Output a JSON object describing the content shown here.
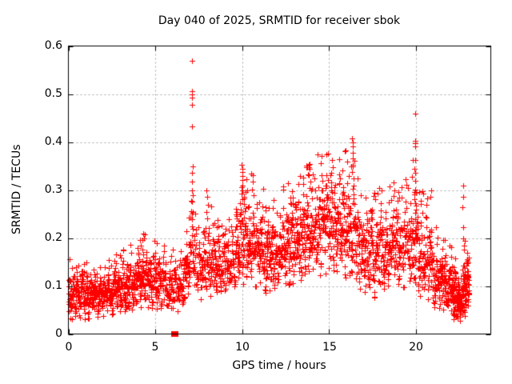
{
  "chart_data": {
    "type": "scatter",
    "title": "Day 040 of 2025, SRMTID for receiver sbok",
    "xlabel": "GPS time / hours",
    "ylabel": "SRMTID / TECUs",
    "xlim": [
      0,
      24.3
    ],
    "ylim": [
      0,
      0.6
    ],
    "xticks": [
      0,
      5,
      10,
      15,
      20
    ],
    "yticks": [
      0,
      0.1,
      0.2,
      0.3,
      0.4,
      0.5,
      0.6
    ],
    "xtick_labels": [
      "0",
      "5",
      "10",
      "15",
      "20"
    ],
    "ytick_labels": [
      "0",
      "0.1",
      "0.2",
      "0.3",
      "0.4",
      "0.5",
      "0.6"
    ],
    "grid": true,
    "legend": "none",
    "marker": "plus",
    "marker_size": 7,
    "marker_color": "#ff0000",
    "grid_color": "#a8a8a8",
    "axis_color": "#000000",
    "background_color": "#ffffff",
    "series_name": "SRMTID",
    "density_bands": [
      [
        0.0,
        0.8,
        110,
        0.03,
        0.135,
        0.035,
        0.13
      ],
      [
        0.8,
        1.6,
        110,
        0.03,
        0.125,
        0.035,
        0.125
      ],
      [
        1.6,
        2.5,
        120,
        0.035,
        0.125,
        0.04,
        0.13
      ],
      [
        2.5,
        3.5,
        130,
        0.04,
        0.14,
        0.05,
        0.15
      ],
      [
        3.5,
        4.5,
        130,
        0.05,
        0.165,
        0.06,
        0.18
      ],
      [
        4.5,
        5.5,
        120,
        0.055,
        0.165,
        0.05,
        0.16
      ],
      [
        5.5,
        6.6,
        110,
        0.04,
        0.15,
        0.05,
        0.155
      ],
      [
        6.6,
        7.05,
        55,
        0.06,
        0.185,
        0.08,
        0.22
      ],
      [
        7.05,
        7.35,
        28,
        0.1,
        0.28,
        0.1,
        0.25
      ],
      [
        7.35,
        8.3,
        105,
        0.07,
        0.21,
        0.08,
        0.225
      ],
      [
        8.3,
        9.6,
        145,
        0.07,
        0.2,
        0.09,
        0.215
      ],
      [
        9.6,
        10.3,
        95,
        0.095,
        0.265,
        0.11,
        0.285
      ],
      [
        10.3,
        11.2,
        115,
        0.1,
        0.285,
        0.1,
        0.265
      ],
      [
        11.2,
        12.2,
        125,
        0.085,
        0.235,
        0.09,
        0.245
      ],
      [
        12.2,
        13.2,
        125,
        0.095,
        0.265,
        0.11,
        0.275
      ],
      [
        13.2,
        14.2,
        125,
        0.11,
        0.3,
        0.13,
        0.315
      ],
      [
        14.2,
        15.3,
        135,
        0.12,
        0.325,
        0.13,
        0.335
      ],
      [
        15.3,
        16.2,
        115,
        0.11,
        0.315,
        0.12,
        0.325
      ],
      [
        16.2,
        16.6,
        48,
        0.12,
        0.32,
        0.115,
        0.3
      ],
      [
        16.6,
        17.5,
        105,
        0.085,
        0.27,
        0.09,
        0.262
      ],
      [
        17.5,
        18.5,
        115,
        0.075,
        0.255,
        0.09,
        0.262
      ],
      [
        18.5,
        19.5,
        115,
        0.09,
        0.27,
        0.1,
        0.28
      ],
      [
        19.5,
        19.95,
        48,
        0.1,
        0.262,
        0.108,
        0.252
      ],
      [
        19.95,
        21.0,
        120,
        0.08,
        0.27,
        0.07,
        0.225
      ],
      [
        21.0,
        22.0,
        135,
        0.05,
        0.195,
        0.04,
        0.15
      ],
      [
        22.0,
        22.65,
        125,
        0.022,
        0.145,
        0.018,
        0.1
      ],
      [
        22.65,
        23.05,
        75,
        0.03,
        0.17,
        0.05,
        0.15
      ]
    ],
    "spike_points": [
      [
        4.15,
        0.185
      ],
      [
        4.28,
        0.196
      ],
      [
        4.32,
        0.21
      ],
      [
        4.36,
        0.2
      ],
      [
        5.08,
        0.19
      ],
      [
        7.1,
        0.57
      ],
      [
        7.12,
        0.505
      ],
      [
        7.11,
        0.5
      ],
      [
        7.13,
        0.492
      ],
      [
        7.12,
        0.478
      ],
      [
        7.12,
        0.433
      ],
      [
        7.14,
        0.35
      ],
      [
        7.11,
        0.335
      ],
      [
        7.13,
        0.318
      ],
      [
        7.1,
        0.3
      ],
      [
        7.15,
        0.29
      ],
      [
        7.12,
        0.275
      ],
      [
        7.16,
        0.255
      ],
      [
        7.1,
        0.24
      ],
      [
        7.13,
        0.225
      ],
      [
        7.96,
        0.3
      ],
      [
        8.0,
        0.286
      ],
      [
        8.04,
        0.27
      ],
      [
        7.93,
        0.255
      ],
      [
        8.6,
        0.238
      ],
      [
        8.64,
        0.224
      ],
      [
        9.98,
        0.352
      ],
      [
        10.0,
        0.345
      ],
      [
        10.02,
        0.337
      ],
      [
        9.99,
        0.329
      ],
      [
        10.01,
        0.321
      ],
      [
        10.0,
        0.31
      ],
      [
        10.03,
        0.299
      ],
      [
        9.97,
        0.293
      ],
      [
        10.27,
        0.3
      ],
      [
        10.6,
        0.33
      ],
      [
        10.63,
        0.317
      ],
      [
        10.58,
        0.301
      ],
      [
        11.52,
        0.262
      ],
      [
        12.88,
        0.298
      ],
      [
        12.92,
        0.284
      ],
      [
        13.84,
        0.352
      ],
      [
        13.87,
        0.344
      ],
      [
        13.82,
        0.331
      ],
      [
        13.9,
        0.317
      ],
      [
        13.86,
        0.304
      ],
      [
        14.56,
        0.33
      ],
      [
        14.6,
        0.319
      ],
      [
        15.17,
        0.362
      ],
      [
        15.21,
        0.348
      ],
      [
        15.14,
        0.335
      ],
      [
        16.33,
        0.407
      ],
      [
        16.36,
        0.4
      ],
      [
        16.34,
        0.391
      ],
      [
        16.38,
        0.377
      ],
      [
        16.35,
        0.365
      ],
      [
        16.37,
        0.349
      ],
      [
        16.31,
        0.337
      ],
      [
        16.4,
        0.324
      ],
      [
        19.0,
        0.296
      ],
      [
        19.05,
        0.284
      ],
      [
        19.93,
        0.46
      ],
      [
        19.95,
        0.402
      ],
      [
        19.96,
        0.397
      ],
      [
        19.94,
        0.391
      ],
      [
        19.97,
        0.362
      ],
      [
        19.92,
        0.345
      ],
      [
        19.95,
        0.336
      ],
      [
        19.96,
        0.32
      ],
      [
        19.93,
        0.301
      ],
      [
        19.98,
        0.294
      ],
      [
        19.94,
        0.272
      ],
      [
        19.97,
        0.252
      ],
      [
        19.95,
        0.24
      ],
      [
        19.99,
        0.222
      ],
      [
        19.96,
        0.21
      ],
      [
        20.01,
        0.2
      ],
      [
        19.81,
        0.362
      ],
      [
        19.77,
        0.327
      ],
      [
        20.11,
        0.197
      ],
      [
        20.16,
        0.19
      ],
      [
        20.88,
        0.3
      ],
      [
        20.84,
        0.286
      ],
      [
        22.69,
        0.31
      ],
      [
        22.72,
        0.286
      ],
      [
        22.67,
        0.264
      ],
      [
        22.73,
        0.222
      ],
      [
        22.7,
        0.2
      ],
      [
        22.75,
        0.184
      ],
      [
        22.97,
        0.15
      ],
      [
        23.0,
        0.12
      ]
    ],
    "zero_points": [
      [
        6.04,
        0
      ],
      [
        6.13,
        0
      ]
    ]
  }
}
